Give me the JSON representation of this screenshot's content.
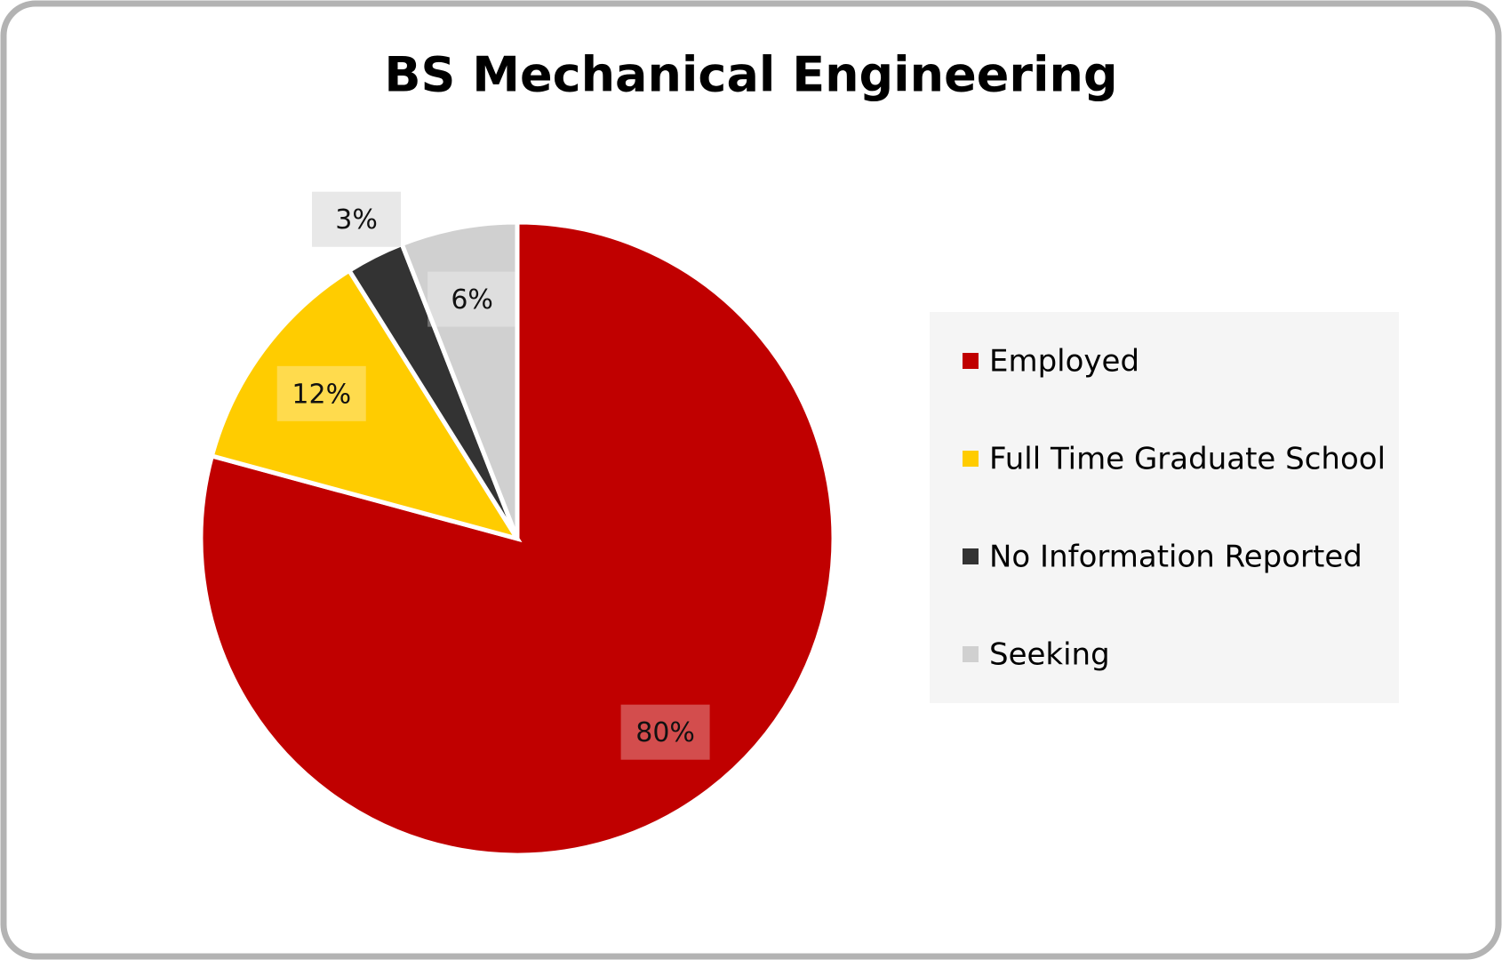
{
  "chart_data": {
    "type": "pie",
    "title": "BS Mechanical Engineering",
    "categories": [
      "Employed",
      "Full Time Graduate School",
      "No Information Reported",
      "Seeking"
    ],
    "values": [
      80,
      12,
      3,
      6
    ],
    "value_labels": [
      "80%",
      "12%",
      "3%",
      "6%"
    ],
    "colors": [
      "#c00000",
      "#ffcc00",
      "#333333",
      "#d0d0d0"
    ],
    "legend": "right"
  }
}
